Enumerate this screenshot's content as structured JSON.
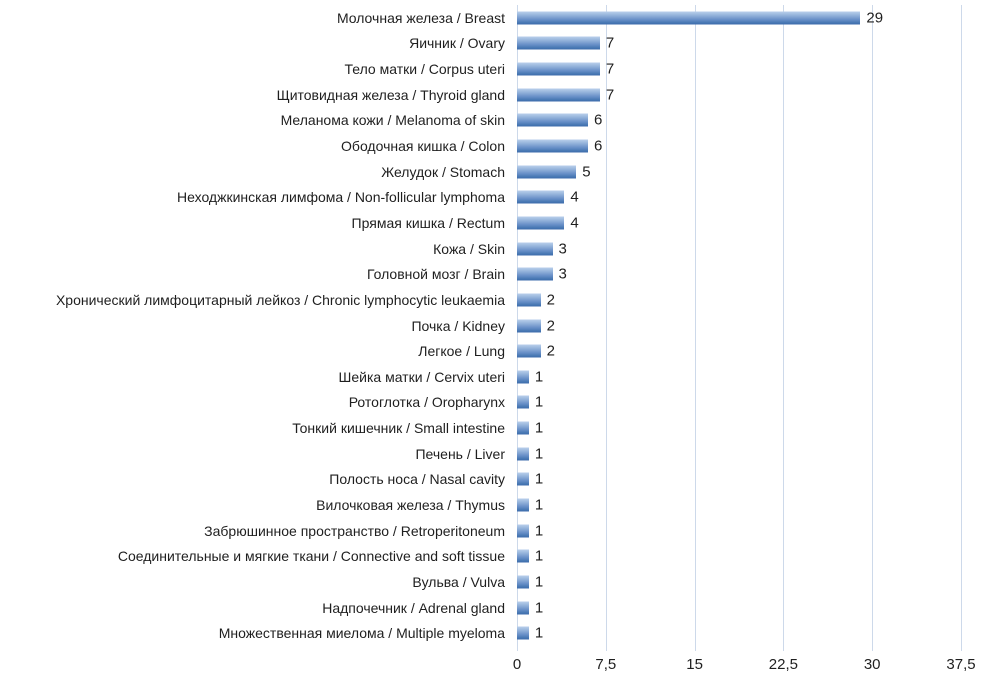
{
  "chart_data": {
    "type": "bar",
    "orientation": "horizontal",
    "title": "",
    "xlabel": "",
    "ylabel": "",
    "xlim": [
      0,
      37.5
    ],
    "grid": true,
    "categories": [
      "Молочная железа / Breast",
      "Яичник / Ovary",
      "Тело матки / Corpus uteri",
      "Щитовидная железа / Thyroid gland",
      "Меланома кожи / Melanoma of skin",
      "Ободочная кишка / Colon",
      "Желудок / Stomach",
      "Неходжкинская лимфома / Non-follicular lymphoma",
      "Прямая кишка / Rectum",
      "Кожа / Skin",
      "Головной мозг / Brain",
      "Хронический лимфоцитарный лейкоз / Chronic lymphocytic leukaemia",
      "Почка / Kidney",
      "Легкое / Lung",
      "Шейка матки / Cervix uteri",
      "Ротоглотка / Oropharynx",
      "Тонкий кишечник / Small intestine",
      "Печень / Liver",
      "Полость носа / Nasal cavity",
      "Вилочковая железа / Thymus",
      "Забрюшинное пространство / Retroperitoneum",
      "Соединительные и мягкие ткани / Connective and soft tissue",
      "Вульва / Vulva",
      "Надпочечник / Adrenal gland",
      "Множественная миелома / Multiple myeloma"
    ],
    "values": [
      29,
      7,
      7,
      7,
      6,
      6,
      5,
      4,
      4,
      3,
      3,
      2,
      2,
      2,
      1,
      1,
      1,
      1,
      1,
      1,
      1,
      1,
      1,
      1,
      1
    ],
    "value_labels": [
      "29",
      "7",
      "7",
      "7",
      "6",
      "6",
      "5",
      "4",
      "4",
      "3",
      "3",
      "2",
      "2",
      "2",
      "1",
      "1",
      "1",
      "1",
      "1",
      "1",
      "1",
      "1",
      "1",
      "1",
      "1"
    ],
    "x_ticks": [
      {
        "label": "0",
        "value": 0
      },
      {
        "label": "7,5",
        "value": 7.5
      },
      {
        "label": "15",
        "value": 15
      },
      {
        "label": "22,5",
        "value": 22.5
      },
      {
        "label": "30",
        "value": 30
      },
      {
        "label": "37,5",
        "value": 37.5
      }
    ],
    "colors": {
      "bar_gradient_top": "#bad0ec",
      "bar_gradient_bottom": "#3e6cab",
      "gridline": "#cdd9ea",
      "text": "#1f1f1f",
      "background": "#ffffff"
    },
    "legend": null
  }
}
